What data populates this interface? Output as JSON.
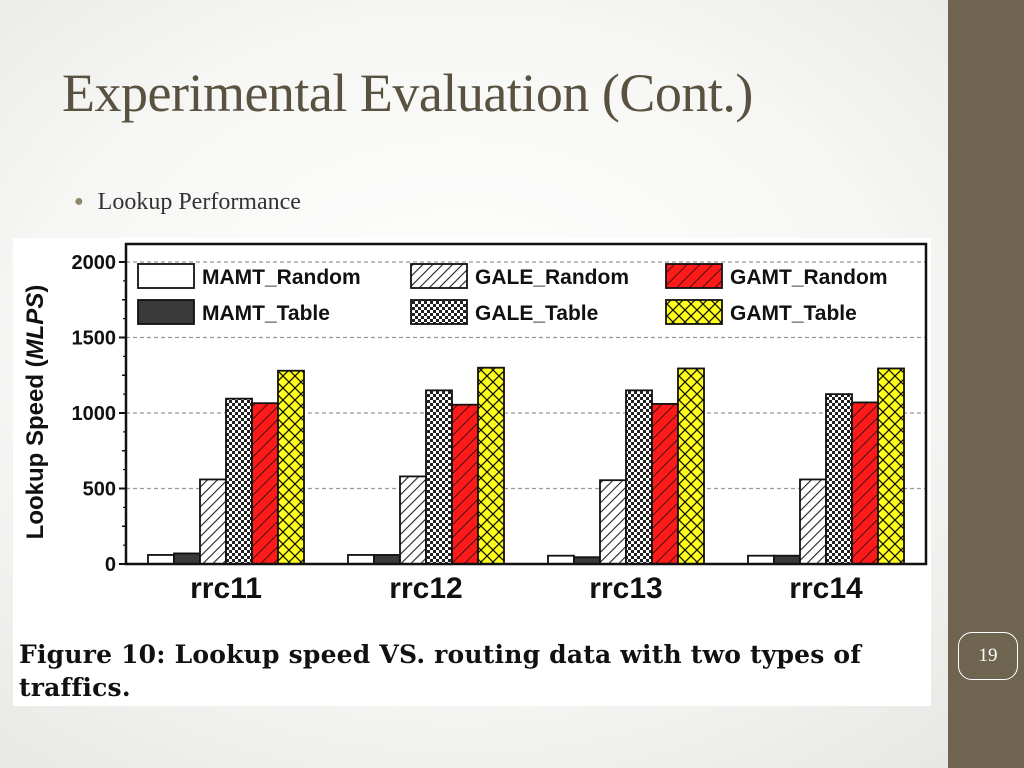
{
  "slide": {
    "title": "Experimental Evaluation (Cont.)",
    "bullet": "Lookup Performance",
    "slide_number": "19",
    "accent_color": "#6e6450"
  },
  "figure": {
    "caption": "Figure 10: Lookup speed VS. routing data with two types of traffics."
  },
  "chart_data": {
    "type": "bar",
    "ylabel_main": "Lookup Speed (",
    "ylabel_unit": "MLPS",
    "ylabel_close": ")",
    "ylim": [
      0,
      2000
    ],
    "yticks": [
      "0",
      "500",
      "1000",
      "1500",
      "2000"
    ],
    "grid": true,
    "legend_placement": "top",
    "categories": [
      "rrc11",
      "rrc12",
      "rrc13",
      "rrc14"
    ],
    "series": [
      {
        "name": "MAMT_Random",
        "values": [
          60,
          60,
          55,
          55
        ],
        "fill": "#ffffff",
        "pattern": "none"
      },
      {
        "name": "MAMT_Table",
        "values": [
          70,
          60,
          45,
          55
        ],
        "fill": "#3a3a3a",
        "pattern": "none"
      },
      {
        "name": "GALE_Random",
        "values": [
          560,
          580,
          555,
          560
        ],
        "fill": "#ffffff",
        "pattern": "diagonal"
      },
      {
        "name": "GALE_Table",
        "values": [
          1095,
          1150,
          1150,
          1125
        ],
        "fill": "#ffffff",
        "pattern": "checker"
      },
      {
        "name": "GAMT_Random",
        "values": [
          1065,
          1055,
          1060,
          1070
        ],
        "fill": "#ff1a1a",
        "pattern": "diagonal"
      },
      {
        "name": "GAMT_Table",
        "values": [
          1280,
          1300,
          1295,
          1295
        ],
        "fill": "#ffff1a",
        "pattern": "crosshatch"
      }
    ]
  }
}
